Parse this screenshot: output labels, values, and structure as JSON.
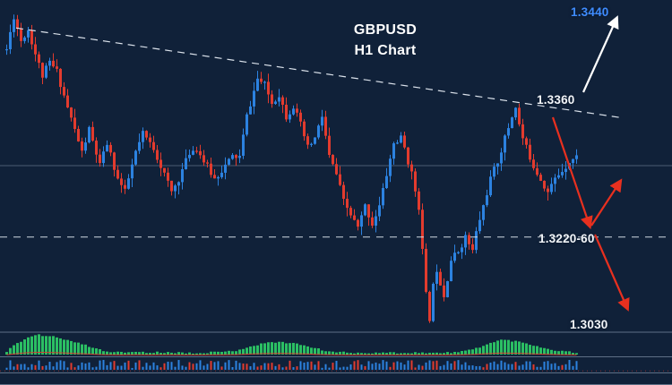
{
  "meta": {
    "app": "forex-price-chart",
    "symbol": "GBPUSD",
    "timeframe": "H1"
  },
  "header": {
    "title_line1": "GBPUSD",
    "title_line2": "H1 Chart"
  },
  "price_labels": {
    "target_up": "1.3440",
    "resistance": "1.3360",
    "support_zone": "1.3220-60",
    "target_down": "1.3030"
  },
  "colors": {
    "background": "#102139",
    "bull_candle": "#2c82e0",
    "bear_candle": "#e23b2e",
    "trendline": "#e6edf5",
    "support_dash": "#e6edf5",
    "mid_line": "#8a9ab0",
    "separator": "#72839a",
    "oscillator_green": "#2bbf63",
    "oscillator_signal_red": "#e0392e",
    "indicator_blue": "#2c82e0",
    "indicator_red": "#e23b2e",
    "label_white": "#f2f5f9",
    "label_blue": "#3f8cff",
    "arrow_red": "#e8301f",
    "arrow_white": "#ffffff"
  },
  "chart_data": {
    "type": "candlestick",
    "symbol": "GBPUSD",
    "timeframe": "H1",
    "title": "GBPUSD H1 Chart",
    "view": {
      "price_top": 1.348,
      "price_bottom": 1.303,
      "bars": 160,
      "main_panel_height": 370
    },
    "key_levels": [
      {
        "label": "1.3440",
        "price": 1.344,
        "kind": "bullish-target",
        "color": "#3f8cff"
      },
      {
        "label": "1.3360",
        "price": 1.336,
        "kind": "trendline-resistance",
        "color": "#f2f5f9"
      },
      {
        "label": "1.3220-60",
        "price_low": 1.322,
        "price_high": 1.326,
        "kind": "support-zone",
        "color": "#f2f5f9"
      },
      {
        "label": "1.3030",
        "price": 1.303,
        "kind": "bearish-target",
        "color": "#f2f5f9"
      }
    ],
    "trendline": {
      "style": "dashed",
      "from_bar": 3,
      "from_price": 1.3442,
      "to_bar": 172,
      "to_price": 1.332
    },
    "support_line": {
      "style": "dashed",
      "price": 1.3158
    },
    "mid_line": {
      "style": "solid",
      "price": 1.3255
    },
    "close_waypoints": [
      [
        0,
        1.3413
      ],
      [
        2,
        1.3458
      ],
      [
        4,
        1.3425
      ],
      [
        6,
        1.344
      ],
      [
        8,
        1.3407
      ],
      [
        10,
        1.3377
      ],
      [
        12,
        1.3395
      ],
      [
        14,
        1.3383
      ],
      [
        17,
        1.3334
      ],
      [
        21,
        1.3273
      ],
      [
        23,
        1.3304
      ],
      [
        26,
        1.3255
      ],
      [
        28,
        1.3285
      ],
      [
        31,
        1.3237
      ],
      [
        33,
        1.3219
      ],
      [
        36,
        1.3273
      ],
      [
        38,
        1.3298
      ],
      [
        41,
        1.3279
      ],
      [
        43,
        1.3255
      ],
      [
        46,
        1.3219
      ],
      [
        48,
        1.3237
      ],
      [
        51,
        1.3273
      ],
      [
        53,
        1.3279
      ],
      [
        55,
        1.3261
      ],
      [
        58,
        1.3237
      ],
      [
        60,
        1.3249
      ],
      [
        63,
        1.3267
      ],
      [
        65,
        1.3267
      ],
      [
        67,
        1.3322
      ],
      [
        70,
        1.3373
      ],
      [
        72,
        1.3364
      ],
      [
        74,
        1.334
      ],
      [
        76,
        1.3352
      ],
      [
        78,
        1.3322
      ],
      [
        80,
        1.3336
      ],
      [
        82,
        1.331
      ],
      [
        84,
        1.3279
      ],
      [
        86,
        1.3292
      ],
      [
        88,
        1.3322
      ],
      [
        90,
        1.3267
      ],
      [
        92,
        1.3243
      ],
      [
        94,
        1.3206
      ],
      [
        96,
        1.3188
      ],
      [
        98,
        1.317
      ],
      [
        100,
        1.32
      ],
      [
        102,
        1.3176
      ],
      [
        104,
        1.32
      ],
      [
        106,
        1.3243
      ],
      [
        108,
        1.3285
      ],
      [
        110,
        1.3292
      ],
      [
        111,
        1.3279
      ],
      [
        113,
        1.3243
      ],
      [
        115,
        1.32
      ],
      [
        116,
        1.3139
      ],
      [
        117,
        1.3079
      ],
      [
        118,
        1.3048
      ],
      [
        119,
        1.3091
      ],
      [
        120,
        1.3115
      ],
      [
        122,
        1.3079
      ],
      [
        124,
        1.3127
      ],
      [
        126,
        1.3139
      ],
      [
        128,
        1.3158
      ],
      [
        130,
        1.3139
      ],
      [
        131,
        1.3164
      ],
      [
        133,
        1.32
      ],
      [
        135,
        1.3237
      ],
      [
        137,
        1.3261
      ],
      [
        139,
        1.3292
      ],
      [
        141,
        1.3322
      ],
      [
        142,
        1.3336
      ],
      [
        143,
        1.331
      ],
      [
        144,
        1.3292
      ],
      [
        145,
        1.3279
      ],
      [
        147,
        1.3255
      ],
      [
        149,
        1.3237
      ],
      [
        151,
        1.3219
      ],
      [
        153,
        1.3237
      ],
      [
        155,
        1.3249
      ],
      [
        157,
        1.3261
      ],
      [
        159,
        1.3267
      ]
    ],
    "indicator_panels": [
      {
        "type": "histogram-oscillator",
        "color": "#2bbf63",
        "signal_color": "#e0392e"
      },
      {
        "type": "dash-indicator",
        "colors": [
          "#2c82e0",
          "#e23b2e"
        ]
      }
    ],
    "oscillator_waypoints": [
      [
        0,
        0.15
      ],
      [
        3,
        0.55
      ],
      [
        6,
        0.85
      ],
      [
        9,
        0.95
      ],
      [
        12,
        0.9
      ],
      [
        16,
        0.75
      ],
      [
        20,
        0.55
      ],
      [
        24,
        0.35
      ],
      [
        27,
        0.18
      ],
      [
        32,
        0.1
      ],
      [
        36,
        0.14
      ],
      [
        40,
        0.1
      ],
      [
        45,
        0.12
      ],
      [
        50,
        0.08
      ],
      [
        55,
        0.1
      ],
      [
        60,
        0.12
      ],
      [
        64,
        0.2
      ],
      [
        68,
        0.4
      ],
      [
        72,
        0.55
      ],
      [
        76,
        0.62
      ],
      [
        80,
        0.55
      ],
      [
        84,
        0.4
      ],
      [
        88,
        0.22
      ],
      [
        92,
        0.12
      ],
      [
        98,
        0.08
      ],
      [
        104,
        0.1
      ],
      [
        110,
        0.08
      ],
      [
        116,
        0.1
      ],
      [
        121,
        0.07
      ],
      [
        126,
        0.12
      ],
      [
        130,
        0.25
      ],
      [
        134,
        0.5
      ],
      [
        138,
        0.72
      ],
      [
        142,
        0.65
      ],
      [
        146,
        0.5
      ],
      [
        150,
        0.32
      ],
      [
        154,
        0.18
      ],
      [
        159,
        0.1
      ]
    ]
  },
  "annotations": {
    "arrows": [
      {
        "name": "bullish-breakout-arrow",
        "color": "#ffffff",
        "from": [
          651,
          103
        ],
        "to": [
          688,
          21
        ]
      },
      {
        "name": "bearish-rejection-arrow",
        "color": "#e8301f",
        "from": [
          617,
          131
        ],
        "to": [
          658,
          252
        ]
      },
      {
        "name": "support-bounce-arrow",
        "color": "#e8301f",
        "from": [
          660,
          252
        ],
        "to": [
          692,
          203
        ]
      },
      {
        "name": "support-break-arrow",
        "color": "#e8301f",
        "from": [
          664,
          262
        ],
        "to": [
          700,
          344
        ]
      }
    ]
  }
}
